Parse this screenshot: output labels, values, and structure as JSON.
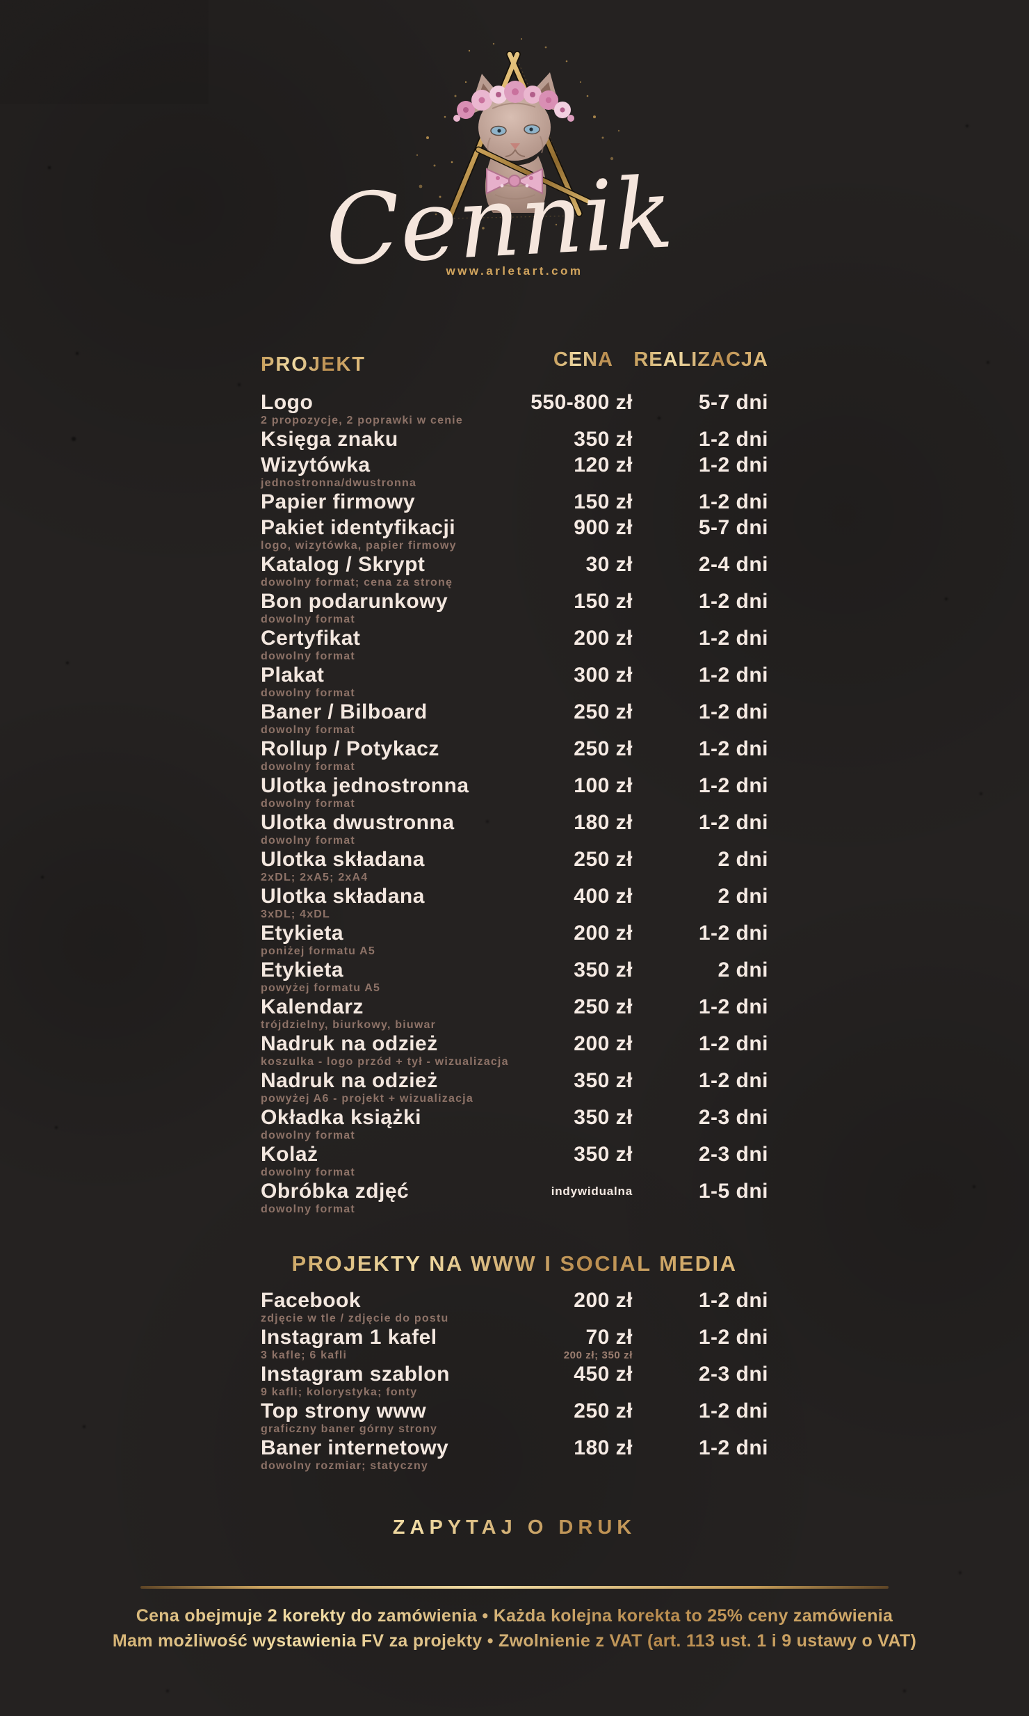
{
  "brand": {
    "script_title": "Cennik",
    "url": "www.arletart.com",
    "logo_description": "sphynx cat with pink flower crown and bow tie inside gold triangle monogram with gold sparkles"
  },
  "table": {
    "headers": {
      "project": "PROJEKT",
      "price": "CENA",
      "time": "REALIZACJA"
    },
    "rows": [
      {
        "name": "Logo",
        "sub": "2 propozycje, 2 poprawki w cenie",
        "price": "550-800 zł",
        "time": "5-7 dni"
      },
      {
        "name": "Księga znaku",
        "sub": "",
        "price": "350 zł",
        "time": "1-2 dni"
      },
      {
        "name": "Wizytówka",
        "sub": "jednostronna/dwustronna",
        "price": "120 zł",
        "time": "1-2 dni"
      },
      {
        "name": "Papier firmowy",
        "sub": "",
        "price": "150 zł",
        "time": "1-2 dni"
      },
      {
        "name": "Pakiet identyfikacji",
        "sub": "logo, wizytówka, papier firmowy",
        "price": "900 zł",
        "time": "5-7 dni"
      },
      {
        "name": "Katalog / Skrypt",
        "sub": "dowolny format; cena za stronę",
        "price": "30 zł",
        "time": "2-4 dni"
      },
      {
        "name": "Bon podarunkowy",
        "sub": "dowolny format",
        "price": "150 zł",
        "time": "1-2 dni"
      },
      {
        "name": "Certyfikat",
        "sub": "dowolny format",
        "price": "200 zł",
        "time": "1-2 dni"
      },
      {
        "name": "Plakat",
        "sub": "dowolny format",
        "price": "300 zł",
        "time": "1-2 dni"
      },
      {
        "name": "Baner / Bilboard",
        "sub": "dowolny format",
        "price": "250 zł",
        "time": "1-2 dni"
      },
      {
        "name": "Rollup / Potykacz",
        "sub": "dowolny format",
        "price": "250 zł",
        "time": "1-2 dni"
      },
      {
        "name": "Ulotka jednostronna",
        "sub": "dowolny format",
        "price": "100 zł",
        "time": "1-2 dni"
      },
      {
        "name": "Ulotka dwustronna",
        "sub": "dowolny format",
        "price": "180 zł",
        "time": "1-2 dni"
      },
      {
        "name": "Ulotka składana",
        "sub": "2xDL; 2xA5; 2xA4",
        "price": "250 zł",
        "time": "2 dni"
      },
      {
        "name": "Ulotka składana",
        "sub": "3xDL; 4xDL",
        "price": "400 zł",
        "time": "2 dni"
      },
      {
        "name": "Etykieta",
        "sub": "poniżej formatu A5",
        "price": "200 zł",
        "time": "1-2 dni"
      },
      {
        "name": "Etykieta",
        "sub": "powyżej formatu A5",
        "price": "350 zł",
        "time": "2 dni"
      },
      {
        "name": "Kalendarz",
        "sub": "trójdzielny, biurkowy, biuwar",
        "price": "250 zł",
        "time": "1-2 dni"
      },
      {
        "name": "Nadruk na odzież",
        "sub": "koszulka - logo przód + tył - wizualizacja",
        "price": "200 zł",
        "time": "1-2 dni"
      },
      {
        "name": "Nadruk na odzież",
        "sub": "powyżej A6 - projekt + wizualizacja",
        "price": "350 zł",
        "time": "1-2 dni"
      },
      {
        "name": "Okładka książki",
        "sub": "dowolny format",
        "price": "350 zł",
        "time": "2-3 dni"
      },
      {
        "name": "Kolaż",
        "sub": "dowolny format",
        "price": "350 zł",
        "time": "2-3 dni"
      },
      {
        "name": "Obróbka zdjęć",
        "sub": "dowolny format",
        "price": "indywidualna",
        "price_small": true,
        "time": "1-5 dni"
      }
    ]
  },
  "social": {
    "header": "PROJEKTY NA WWW I SOCIAL MEDIA",
    "rows": [
      {
        "name": "Facebook",
        "sub": "zdjęcie w tle / zdjęcie do postu",
        "price": "200 zł",
        "time": "1-2 dni"
      },
      {
        "name": "Instagram 1 kafel",
        "sub": "3 kafle; 6 kafli",
        "price": "70 zł",
        "price_sub": "200 zł; 350 zł",
        "time": "1-2 dni"
      },
      {
        "name": "Instagram szablon",
        "sub": "9 kafli; kolorystyka; fonty",
        "price": "450 zł",
        "time": "2-3 dni"
      },
      {
        "name": "Top strony www",
        "sub": "graficzny baner górny strony",
        "price": "250 zł",
        "time": "1-2 dni"
      },
      {
        "name": "Baner internetowy",
        "sub": "dowolny rozmiar; statyczny",
        "price": "180 zł",
        "time": "1-2 dni"
      }
    ]
  },
  "footer": {
    "cta": "ZAPYTAJ O DRUK",
    "note1": "Cena obejmuje 2 korekty do zamówienia   •   Każda kolejna korekta to 25% ceny zamówienia",
    "note2": "Mam możliwość wystawienia FV za projekty   •   Zwolnienie z VAT (art. 113 ust. 1 i 9 ustawy o VAT)"
  },
  "colors": {
    "background": "#252221",
    "accent_gold": "#d4a85f",
    "title_text": "#f3e7df",
    "sub_text": "#8d7267",
    "script_cream": "#f5e6dd"
  }
}
